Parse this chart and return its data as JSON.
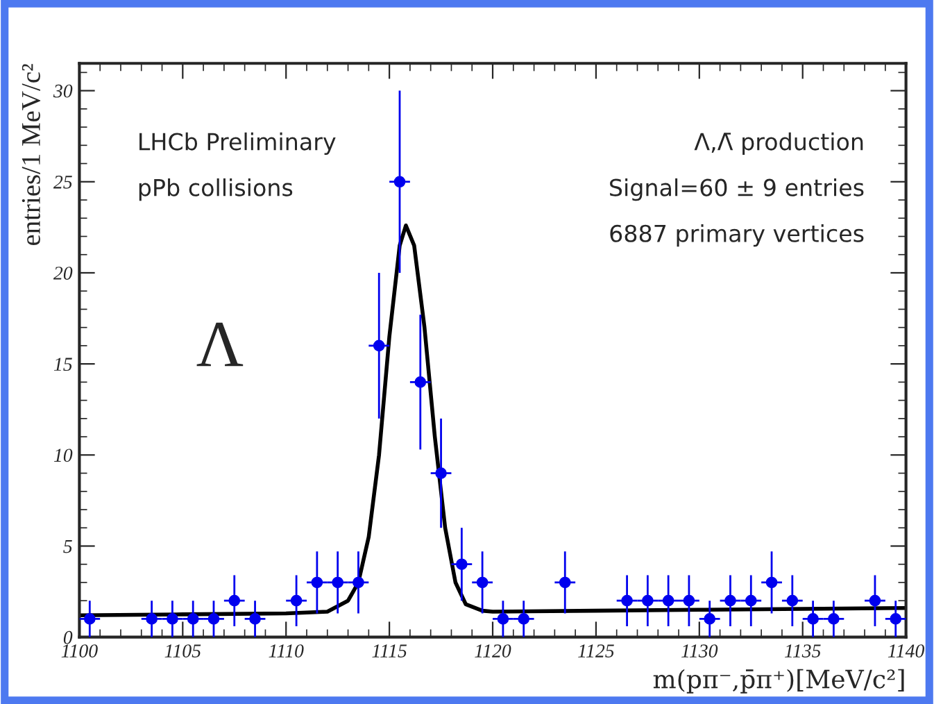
{
  "chart_data": {
    "type": "scatter",
    "xlabel": "m(pπ⁻,p̄π⁺)[MeV/c²]",
    "ylabel": "entries/1 MeV/c²",
    "series": [
      {
        "color": "#0000ee",
        "marker": "circle",
        "x": [
          1100.5,
          1103.5,
          1104.5,
          1105.5,
          1106.5,
          1107.5,
          1108.5,
          1110.5,
          1111.5,
          1112.5,
          1113.5,
          1114.5,
          1115.5,
          1116.5,
          1117.5,
          1118.5,
          1119.5,
          1120.5,
          1121.5,
          1123.5,
          1126.5,
          1127.5,
          1128.5,
          1129.5,
          1130.5,
          1131.5,
          1132.5,
          1133.5,
          1134.5,
          1135.5,
          1136.5,
          1138.5,
          1139.5
        ],
        "values": [
          1,
          1,
          1,
          1,
          1,
          2,
          1,
          2,
          3,
          3,
          3,
          16,
          25,
          14,
          9,
          4,
          3,
          1,
          1,
          3,
          2,
          2,
          2,
          2,
          1,
          2,
          2,
          3,
          2,
          1,
          1,
          2,
          1
        ],
        "errors": [
          1,
          1,
          1,
          1,
          1,
          1.4,
          1,
          1.4,
          1.7,
          1.7,
          1.7,
          4,
          5,
          3.7,
          3,
          2,
          1.7,
          1,
          1,
          1.7,
          1.4,
          1.4,
          1.4,
          1.4,
          1,
          1.4,
          1.4,
          1.7,
          1.4,
          1,
          1,
          1.4,
          1
        ],
        "xerrors": [
          0.5,
          0.5,
          0.5,
          0.5,
          0.5,
          0.5,
          0.5,
          0.5,
          0.5,
          0.5,
          0.5,
          0.5,
          0.5,
          0.5,
          0.5,
          0.5,
          0.5,
          0.5,
          0.5,
          0.5,
          0.5,
          0.5,
          0.5,
          0.5,
          0.5,
          0.5,
          0.5,
          0.5,
          0.5,
          0.5,
          0.5,
          0.5,
          0.5
        ]
      },
      {
        "type": "line",
        "color": "#000000",
        "line_style": "solid",
        "x": [
          1100,
          1105,
          1110,
          1112,
          1113,
          1113.5,
          1114,
          1114.5,
          1115,
          1115.5,
          1115.8,
          1116.2,
          1116.7,
          1117.2,
          1117.7,
          1118.2,
          1118.7,
          1119.5,
          1120,
          1125,
          1130,
          1135,
          1140
        ],
        "values": [
          1.2,
          1.25,
          1.3,
          1.4,
          2,
          3,
          5.5,
          10,
          16.5,
          21.5,
          22.6,
          21.5,
          17,
          11,
          6,
          3,
          1.8,
          1.45,
          1.4,
          1.45,
          1.5,
          1.55,
          1.6
        ]
      }
    ],
    "xlim": [
      1100,
      1140
    ],
    "xticks": [
      1100,
      1105,
      1110,
      1115,
      1120,
      1125,
      1130,
      1135,
      1140
    ],
    "ylim": [
      0,
      31.5
    ],
    "yticks": [
      0,
      5,
      10,
      15,
      20,
      25,
      30
    ],
    "grid": false,
    "legend": false,
    "annotations": [
      "LHCb Preliminary",
      "pPb collisions",
      "Λ,Λ̄ production",
      "Signal=60 ± 9 entries",
      "6887 primary vertices",
      "Λ"
    ]
  }
}
